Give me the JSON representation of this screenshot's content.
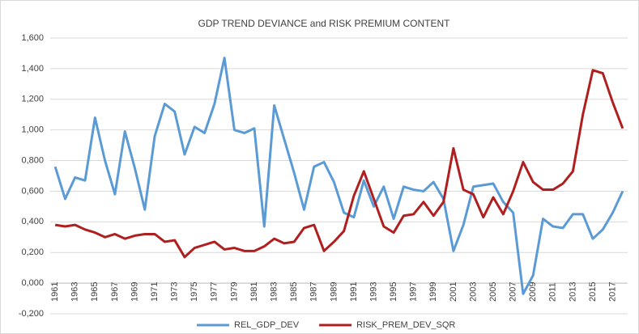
{
  "chart_data": {
    "type": "line",
    "title": "GDP TREND DEVIANCE and RISK PREMIUM CONTENT",
    "categories": [
      "1961",
      null,
      "1963",
      null,
      "1965",
      null,
      "1967",
      null,
      "1969",
      null,
      "1971",
      null,
      "1973",
      null,
      "1975",
      null,
      "1977",
      null,
      "1979",
      null,
      "1981",
      null,
      "1983",
      null,
      "1985",
      null,
      "1987",
      null,
      "1989",
      null,
      "1991",
      null,
      "1993",
      null,
      "1995",
      null,
      "1997",
      null,
      "1999",
      null,
      "2001",
      null,
      "2003",
      null,
      "2005",
      null,
      "2007",
      null,
      "2009",
      null,
      "2011",
      null,
      "2013",
      null,
      "2015",
      null,
      "2017",
      null
    ],
    "series": [
      {
        "name": "REL_GDP_DEV",
        "color": "#5b9bd5",
        "values": [
          0.76,
          0.55,
          0.69,
          0.67,
          1.08,
          0.8,
          0.58,
          0.99,
          0.75,
          0.48,
          0.96,
          1.17,
          1.12,
          0.84,
          1.02,
          0.98,
          1.17,
          1.47,
          1.0,
          0.98,
          1.01,
          0.37,
          1.16,
          0.94,
          0.72,
          0.48,
          0.76,
          0.79,
          0.66,
          0.46,
          0.43,
          0.67,
          0.5,
          0.63,
          0.42,
          0.63,
          0.61,
          0.6,
          0.66,
          0.55,
          0.21,
          0.38,
          0.63,
          0.64,
          0.65,
          0.53,
          0.46,
          -0.07,
          0.05,
          0.42,
          0.37,
          0.36,
          0.45,
          0.45,
          0.29,
          0.35,
          0.46,
          0.6
        ]
      },
      {
        "name": "RISK_PREM_DEV_SQR",
        "color": "#b01f1f",
        "values": [
          0.38,
          0.37,
          0.38,
          0.35,
          0.33,
          0.3,
          0.32,
          0.29,
          0.31,
          0.32,
          0.32,
          0.27,
          0.28,
          0.17,
          0.23,
          0.25,
          0.27,
          0.22,
          0.23,
          0.21,
          0.21,
          0.24,
          0.29,
          0.26,
          0.27,
          0.36,
          0.38,
          0.21,
          0.27,
          0.34,
          0.57,
          0.73,
          0.55,
          0.37,
          0.33,
          0.44,
          0.45,
          0.53,
          0.44,
          0.53,
          0.88,
          0.61,
          0.58,
          0.43,
          0.56,
          0.45,
          0.6,
          0.79,
          0.66,
          0.61,
          0.61,
          0.65,
          0.73,
          1.1,
          1.39,
          1.37,
          1.18,
          1.01
        ]
      }
    ],
    "ylim": [
      -0.2,
      1.6
    ],
    "yticks": [
      {
        "value": -0.2,
        "label": "-0,200"
      },
      {
        "value": 0,
        "label": "0,000"
      },
      {
        "value": 0.2,
        "label": "0,200"
      },
      {
        "value": 0.4,
        "label": "0,400"
      },
      {
        "value": 0.6,
        "label": "0,600"
      },
      {
        "value": 0.8,
        "label": "0,800"
      },
      {
        "value": 1,
        "label": "1,000"
      },
      {
        "value": 1.2,
        "label": "1,200"
      },
      {
        "value": 1.4,
        "label": "1,400"
      },
      {
        "value": 1.6,
        "label": "1,600"
      }
    ],
    "grid": true,
    "legend": "bottom"
  }
}
